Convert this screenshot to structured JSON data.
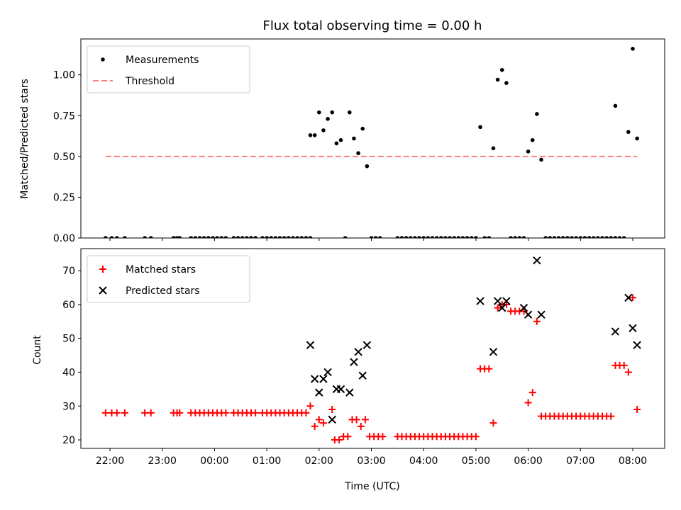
{
  "chart_data": [
    {
      "type": "scatter",
      "title": "Flux total observing time = 0.00 h",
      "ylabel": "Matched/Predicted stars",
      "xlabel": "",
      "ylim": [
        0,
        1.22
      ],
      "yticks": [
        0.0,
        0.25,
        0.5,
        0.75,
        1.0
      ],
      "ytick_labels": [
        "0.00",
        "0.25",
        "0.50",
        "0.75",
        "1.00"
      ],
      "legend_position": "upper-left",
      "series": [
        {
          "name": "Measurements",
          "marker": "dot",
          "color": "#000000",
          "points": [
            [
              "21:55",
              0
            ],
            [
              "22:02",
              0
            ],
            [
              "22:08",
              0
            ],
            [
              "22:17",
              0
            ],
            [
              "22:40",
              0
            ],
            [
              "22:47",
              0
            ],
            [
              "23:13",
              0
            ],
            [
              "23:17",
              0
            ],
            [
              "23:20",
              0
            ],
            [
              "23:33",
              0
            ],
            [
              "23:38",
              0
            ],
            [
              "23:43",
              0
            ],
            [
              "23:48",
              0
            ],
            [
              "23:53",
              0
            ],
            [
              "23:58",
              0
            ],
            [
              "00:03",
              0
            ],
            [
              "00:08",
              0
            ],
            [
              "00:13",
              0
            ],
            [
              "00:22",
              0
            ],
            [
              "00:27",
              0
            ],
            [
              "00:32",
              0
            ],
            [
              "00:37",
              0
            ],
            [
              "00:42",
              0
            ],
            [
              "00:47",
              0
            ],
            [
              "00:55",
              0
            ],
            [
              "01:00",
              0
            ],
            [
              "01:05",
              0
            ],
            [
              "01:10",
              0
            ],
            [
              "01:15",
              0
            ],
            [
              "01:20",
              0
            ],
            [
              "01:25",
              0
            ],
            [
              "01:30",
              0
            ],
            [
              "01:35",
              0
            ],
            [
              "01:40",
              0
            ],
            [
              "01:45",
              0
            ],
            [
              "01:50",
              0
            ],
            [
              "01:50",
              0.63
            ],
            [
              "01:55",
              0.63
            ],
            [
              "02:00",
              0.77
            ],
            [
              "02:05",
              0.66
            ],
            [
              "02:10",
              0.73
            ],
            [
              "02:15",
              0.77
            ],
            [
              "02:20",
              0.58
            ],
            [
              "02:25",
              0.6
            ],
            [
              "02:30",
              0
            ],
            [
              "02:35",
              0.77
            ],
            [
              "02:40",
              0.61
            ],
            [
              "02:45",
              0.52
            ],
            [
              "02:50",
              0.67
            ],
            [
              "02:55",
              0.44
            ],
            [
              "03:00",
              0
            ],
            [
              "03:05",
              0
            ],
            [
              "03:10",
              0
            ],
            [
              "03:30",
              0
            ],
            [
              "03:35",
              0
            ],
            [
              "03:40",
              0
            ],
            [
              "03:45",
              0
            ],
            [
              "03:50",
              0
            ],
            [
              "03:55",
              0
            ],
            [
              "04:00",
              0
            ],
            [
              "04:05",
              0
            ],
            [
              "04:10",
              0
            ],
            [
              "04:15",
              0
            ],
            [
              "04:20",
              0
            ],
            [
              "04:25",
              0
            ],
            [
              "04:30",
              0
            ],
            [
              "04:35",
              0
            ],
            [
              "04:40",
              0
            ],
            [
              "04:45",
              0
            ],
            [
              "04:50",
              0
            ],
            [
              "04:55",
              0
            ],
            [
              "05:00",
              0
            ],
            [
              "05:05",
              0.68
            ],
            [
              "05:10",
              0
            ],
            [
              "05:15",
              0
            ],
            [
              "05:20",
              0.55
            ],
            [
              "05:25",
              0.97
            ],
            [
              "05:30",
              1.03
            ],
            [
              "05:35",
              0.95
            ],
            [
              "05:40",
              0
            ],
            [
              "05:45",
              0
            ],
            [
              "05:50",
              0
            ],
            [
              "05:55",
              0
            ],
            [
              "06:00",
              0.53
            ],
            [
              "06:05",
              0.6
            ],
            [
              "06:10",
              0.76
            ],
            [
              "06:15",
              0.48
            ],
            [
              "06:20",
              0
            ],
            [
              "06:25",
              0
            ],
            [
              "06:30",
              0
            ],
            [
              "06:35",
              0
            ],
            [
              "06:40",
              0
            ],
            [
              "06:45",
              0
            ],
            [
              "06:50",
              0
            ],
            [
              "06:55",
              0
            ],
            [
              "07:00",
              0
            ],
            [
              "07:05",
              0
            ],
            [
              "07:10",
              0
            ],
            [
              "07:15",
              0
            ],
            [
              "07:20",
              0
            ],
            [
              "07:25",
              0
            ],
            [
              "07:30",
              0
            ],
            [
              "07:35",
              0
            ],
            [
              "07:40",
              0
            ],
            [
              "07:40",
              0.81
            ],
            [
              "07:45",
              0
            ],
            [
              "07:50",
              0
            ],
            [
              "07:55",
              0.65
            ],
            [
              "08:00",
              1.16
            ],
            [
              "08:05",
              0.61
            ]
          ]
        },
        {
          "name": "Threshold",
          "line": "dashed",
          "color": "#ff7f7f",
          "points": [
            [
              "21:55",
              0.5
            ],
            [
              "08:05",
              0.5
            ]
          ]
        }
      ]
    },
    {
      "type": "scatter",
      "title": "",
      "ylabel": "Count",
      "xlabel": "Time (UTC)",
      "ylim": [
        17.5,
        76.5
      ],
      "yticks": [
        20,
        30,
        40,
        50,
        60,
        70
      ],
      "ytick_labels": [
        "20",
        "30",
        "40",
        "50",
        "60",
        "70"
      ],
      "x_ticks": [
        "22:00",
        "23:00",
        "00:00",
        "01:00",
        "02:00",
        "03:00",
        "04:00",
        "05:00",
        "06:00",
        "07:00",
        "08:00"
      ],
      "legend_position": "upper-left",
      "series": [
        {
          "name": "Matched stars",
          "marker": "plus",
          "color": "#ff0000",
          "points": [
            [
              "21:55",
              28
            ],
            [
              "22:02",
              28
            ],
            [
              "22:08",
              28
            ],
            [
              "22:17",
              28
            ],
            [
              "22:40",
              28
            ],
            [
              "22:47",
              28
            ],
            [
              "23:13",
              28
            ],
            [
              "23:17",
              28
            ],
            [
              "23:20",
              28
            ],
            [
              "23:33",
              28
            ],
            [
              "23:38",
              28
            ],
            [
              "23:43",
              28
            ],
            [
              "23:48",
              28
            ],
            [
              "23:53",
              28
            ],
            [
              "23:58",
              28
            ],
            [
              "00:03",
              28
            ],
            [
              "00:08",
              28
            ],
            [
              "00:13",
              28
            ],
            [
              "00:22",
              28
            ],
            [
              "00:27",
              28
            ],
            [
              "00:32",
              28
            ],
            [
              "00:37",
              28
            ],
            [
              "00:42",
              28
            ],
            [
              "00:47",
              28
            ],
            [
              "00:55",
              28
            ],
            [
              "01:00",
              28
            ],
            [
              "01:05",
              28
            ],
            [
              "01:10",
              28
            ],
            [
              "01:15",
              28
            ],
            [
              "01:20",
              28
            ],
            [
              "01:25",
              28
            ],
            [
              "01:30",
              28
            ],
            [
              "01:35",
              28
            ],
            [
              "01:40",
              28
            ],
            [
              "01:45",
              28
            ],
            [
              "01:50",
              30
            ],
            [
              "01:55",
              24
            ],
            [
              "02:00",
              26
            ],
            [
              "02:05",
              25
            ],
            [
              "02:15",
              29
            ],
            [
              "02:18",
              20
            ],
            [
              "02:23",
              20
            ],
            [
              "02:28",
              21
            ],
            [
              "02:33",
              21
            ],
            [
              "02:38",
              26
            ],
            [
              "02:43",
              26
            ],
            [
              "02:48",
              24
            ],
            [
              "02:53",
              26
            ],
            [
              "02:58",
              21
            ],
            [
              "03:03",
              21
            ],
            [
              "03:08",
              21
            ],
            [
              "03:13",
              21
            ],
            [
              "03:30",
              21
            ],
            [
              "03:35",
              21
            ],
            [
              "03:40",
              21
            ],
            [
              "03:45",
              21
            ],
            [
              "03:50",
              21
            ],
            [
              "03:55",
              21
            ],
            [
              "04:00",
              21
            ],
            [
              "04:05",
              21
            ],
            [
              "04:10",
              21
            ],
            [
              "04:15",
              21
            ],
            [
              "04:20",
              21
            ],
            [
              "04:25",
              21
            ],
            [
              "04:30",
              21
            ],
            [
              "04:35",
              21
            ],
            [
              "04:40",
              21
            ],
            [
              "04:45",
              21
            ],
            [
              "04:50",
              21
            ],
            [
              "04:55",
              21
            ],
            [
              "05:00",
              21
            ],
            [
              "05:05",
              41
            ],
            [
              "05:10",
              41
            ],
            [
              "05:15",
              41
            ],
            [
              "05:20",
              25
            ],
            [
              "05:25",
              59
            ],
            [
              "05:30",
              60
            ],
            [
              "05:35",
              60
            ],
            [
              "05:40",
              58
            ],
            [
              "05:45",
              58
            ],
            [
              "05:50",
              58
            ],
            [
              "05:55",
              58
            ],
            [
              "06:00",
              31
            ],
            [
              "06:05",
              34
            ],
            [
              "06:10",
              55
            ],
            [
              "06:15",
              27
            ],
            [
              "06:20",
              27
            ],
            [
              "06:25",
              27
            ],
            [
              "06:30",
              27
            ],
            [
              "06:35",
              27
            ],
            [
              "06:40",
              27
            ],
            [
              "06:45",
              27
            ],
            [
              "06:50",
              27
            ],
            [
              "06:55",
              27
            ],
            [
              "07:00",
              27
            ],
            [
              "07:05",
              27
            ],
            [
              "07:10",
              27
            ],
            [
              "07:15",
              27
            ],
            [
              "07:20",
              27
            ],
            [
              "07:25",
              27
            ],
            [
              "07:30",
              27
            ],
            [
              "07:35",
              27
            ],
            [
              "07:40",
              42
            ],
            [
              "07:45",
              42
            ],
            [
              "07:50",
              42
            ],
            [
              "07:55",
              40
            ],
            [
              "08:00",
              62
            ],
            [
              "08:05",
              29
            ]
          ]
        },
        {
          "name": "Predicted stars",
          "marker": "x",
          "color": "#000000",
          "points": [
            [
              "01:50",
              48
            ],
            [
              "01:55",
              38
            ],
            [
              "02:00",
              34
            ],
            [
              "02:05",
              38
            ],
            [
              "02:10",
              40
            ],
            [
              "02:15",
              26
            ],
            [
              "02:20",
              35
            ],
            [
              "02:25",
              35
            ],
            [
              "02:35",
              34
            ],
            [
              "02:40",
              43
            ],
            [
              "02:45",
              46
            ],
            [
              "02:50",
              39
            ],
            [
              "02:55",
              48
            ],
            [
              "05:05",
              61
            ],
            [
              "05:20",
              46
            ],
            [
              "05:25",
              61
            ],
            [
              "05:30",
              59
            ],
            [
              "05:35",
              61
            ],
            [
              "05:55",
              59
            ],
            [
              "06:00",
              57
            ],
            [
              "06:10",
              73
            ],
            [
              "06:15",
              57
            ],
            [
              "07:40",
              52
            ],
            [
              "07:55",
              62
            ],
            [
              "08:00",
              53
            ],
            [
              "08:05",
              48
            ]
          ]
        }
      ]
    }
  ]
}
